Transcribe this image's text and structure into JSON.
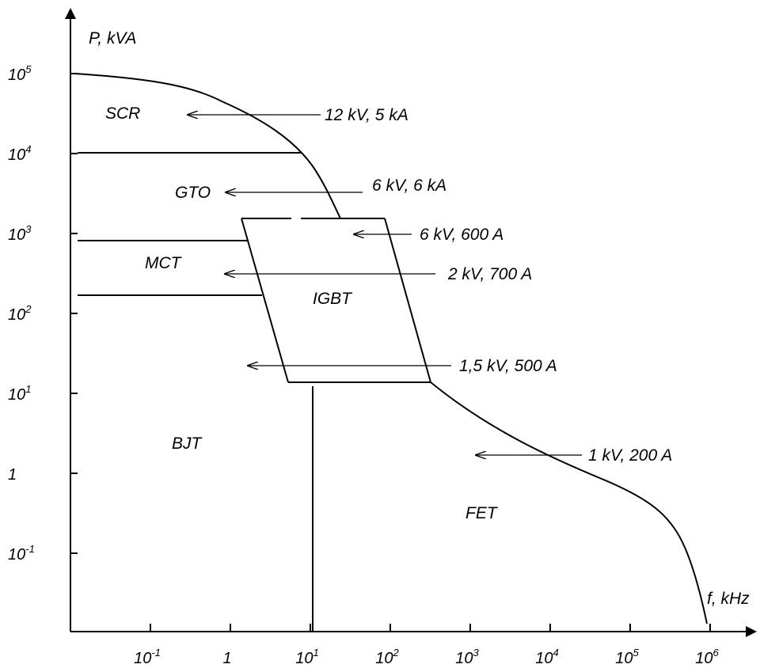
{
  "axes": {
    "y_label": "P, kVA",
    "x_label": "f, kHz",
    "y_ticks": [
      {
        "base": "10",
        "exp": "5"
      },
      {
        "base": "10",
        "exp": "4"
      },
      {
        "base": "10",
        "exp": "3"
      },
      {
        "base": "10",
        "exp": "2"
      },
      {
        "base": "10",
        "exp": "1"
      },
      {
        "base": "1",
        "exp": ""
      },
      {
        "base": "10",
        "exp": "-1"
      }
    ],
    "x_ticks": [
      {
        "base": "10",
        "exp": "-1"
      },
      {
        "base": "1",
        "exp": ""
      },
      {
        "base": "10",
        "exp": "1"
      },
      {
        "base": "10",
        "exp": "2"
      },
      {
        "base": "10",
        "exp": "3"
      },
      {
        "base": "10",
        "exp": "4"
      },
      {
        "base": "10",
        "exp": "5"
      },
      {
        "base": "10",
        "exp": "6"
      }
    ]
  },
  "regions": {
    "scr": "SCR",
    "gto": "GTO",
    "mct": "MCT",
    "igbt": "IGBT",
    "bjt": "BJT",
    "fet": "FET"
  },
  "ratings": {
    "scr": "12 kV, 5 kA",
    "gto": "6 kV, 6 kA",
    "igbt": "6 kV, 600 A",
    "mct": "2 kV, 700 A",
    "bjt": "1,5 kV, 500 A",
    "fet": "1 kV, 200 A"
  }
}
